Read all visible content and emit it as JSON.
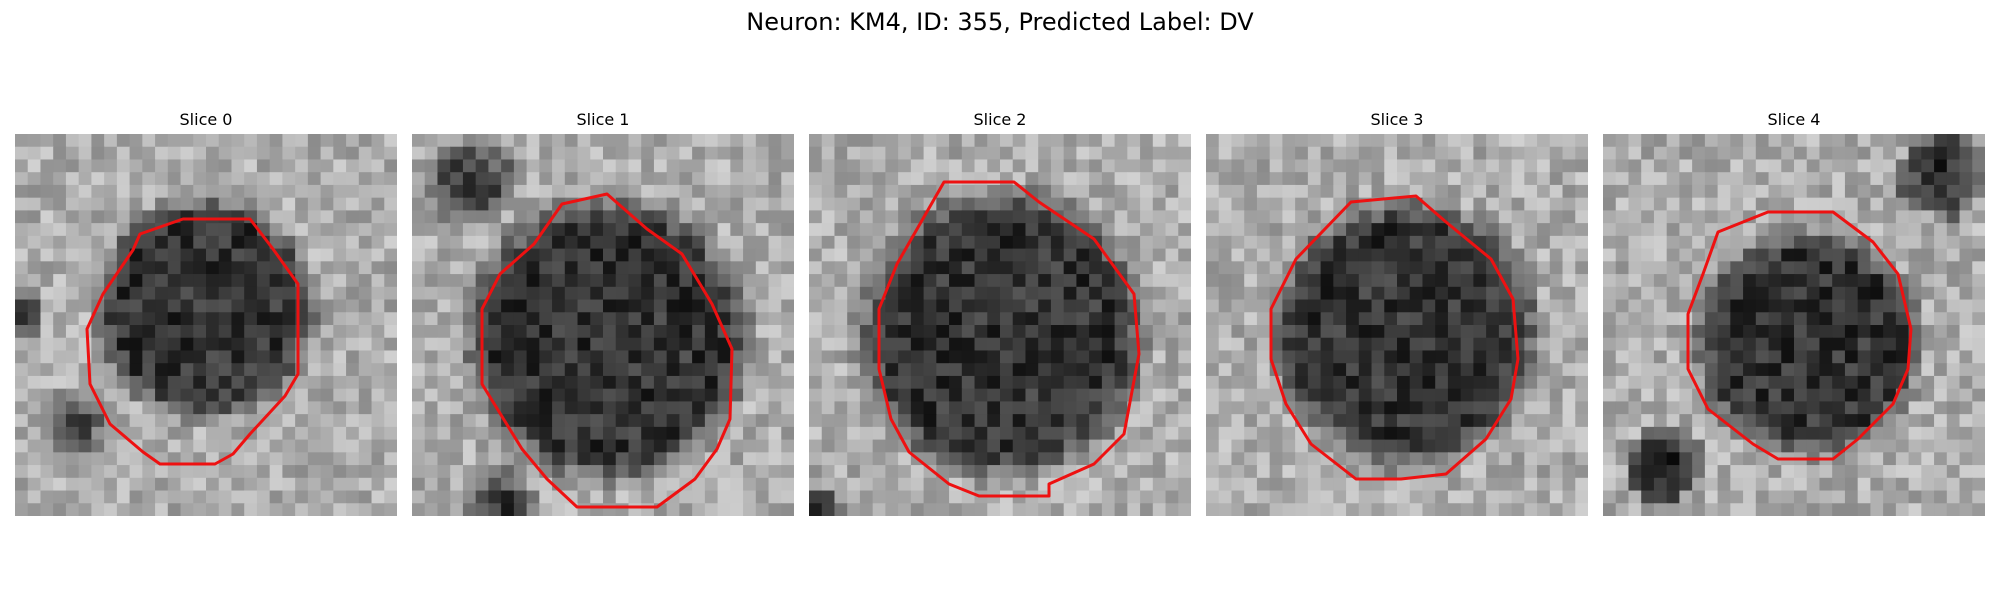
{
  "figure": {
    "title": "Neuron: KM4, ID: 355, Predicted Label: DV"
  },
  "panels": [
    {
      "title": "Slice 0"
    },
    {
      "title": "Slice 1"
    },
    {
      "title": "Slice 2"
    },
    {
      "title": "Slice 3"
    },
    {
      "title": "Slice 4"
    }
  ],
  "colors": {
    "contour": "#ee1111",
    "background": "#ffffff"
  },
  "image_style": "grayscale"
}
